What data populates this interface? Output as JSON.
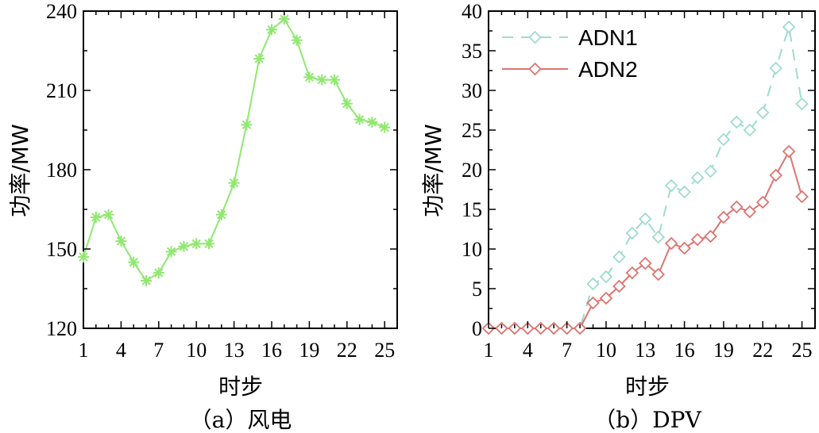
{
  "chart_data": [
    {
      "type": "line",
      "caption": "（a）风电",
      "xlabel": "时步",
      "ylabel": "功率/MW",
      "x": [
        1,
        2,
        3,
        4,
        5,
        6,
        7,
        8,
        9,
        10,
        11,
        12,
        13,
        14,
        15,
        16,
        17,
        18,
        19,
        20,
        21,
        22,
        23,
        24,
        25
      ],
      "xticks": [
        "1",
        "4",
        "7",
        "10",
        "13",
        "16",
        "19",
        "22",
        "25"
      ],
      "yticks": [
        "120",
        "150",
        "180",
        "210",
        "240"
      ],
      "xlim": [
        1,
        26
      ],
      "ylim": [
        120,
        240
      ],
      "grid": false,
      "series": [
        {
          "values": [
            147,
            162,
            163,
            153,
            145,
            138,
            141,
            149,
            151,
            152,
            152,
            163,
            175,
            197,
            222,
            233,
            237,
            229,
            215,
            214,
            214,
            205,
            199,
            198,
            196
          ],
          "color": "#90e870",
          "marker": "asterisk",
          "dash": "solid"
        }
      ]
    },
    {
      "type": "line",
      "caption": "（b）DPV",
      "xlabel": "时步",
      "ylabel": "功率/MW",
      "x": [
        1,
        2,
        3,
        4,
        5,
        6,
        7,
        8,
        9,
        10,
        11,
        12,
        13,
        14,
        15,
        16,
        17,
        18,
        19,
        20,
        21,
        22,
        23,
        24,
        25
      ],
      "xticks": [
        "1",
        "4",
        "7",
        "10",
        "13",
        "16",
        "19",
        "22",
        "25"
      ],
      "yticks": [
        "0",
        "5",
        "10",
        "15",
        "20",
        "25",
        "30",
        "35",
        "40"
      ],
      "xlim": [
        1,
        26
      ],
      "ylim": [
        0,
        40
      ],
      "grid": false,
      "legend_position": "top-left",
      "series": [
        {
          "name": "ADN1",
          "values": [
            0,
            0,
            0,
            0,
            0,
            0,
            0,
            0,
            5.6,
            6.5,
            9,
            12,
            13.8,
            11.5,
            18,
            17.2,
            19,
            19.8,
            23.8,
            26,
            25,
            27.2,
            32.8,
            38,
            28.3
          ],
          "color": "#9fdccc",
          "marker": "diamond",
          "dash": "dashed"
        },
        {
          "name": "ADN2",
          "values": [
            0,
            0,
            0,
            0,
            0,
            0,
            0,
            0,
            3.2,
            3.8,
            5.3,
            7,
            8.2,
            6.8,
            10.7,
            10.1,
            11.2,
            11.6,
            14,
            15.3,
            14.7,
            15.9,
            19.3,
            22.3,
            16.6
          ],
          "color": "#dc7470",
          "marker": "diamond",
          "dash": "solid"
        }
      ]
    }
  ]
}
